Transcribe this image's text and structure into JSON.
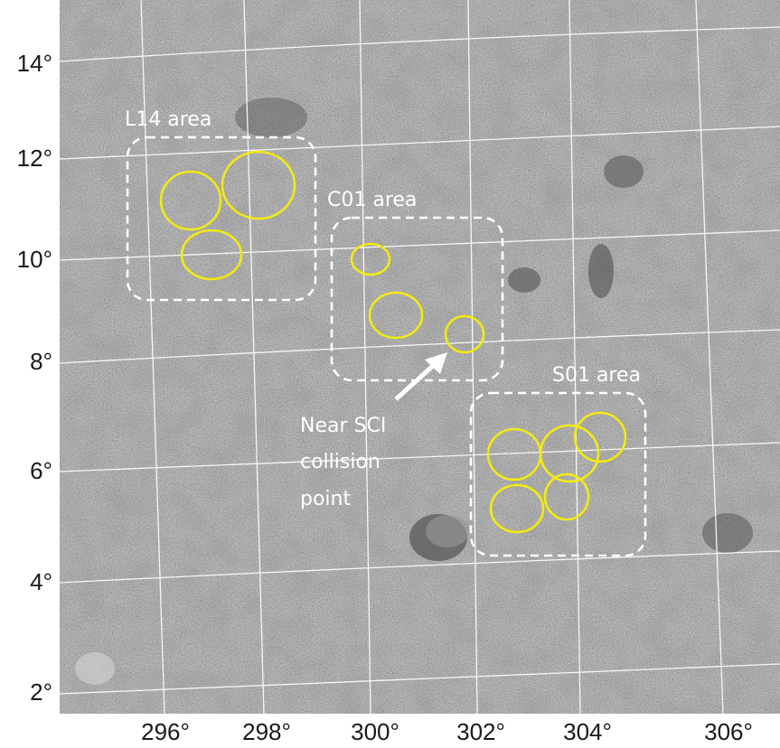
{
  "axes": {
    "x_ticks": [
      "296°",
      "298°",
      "300°",
      "302°",
      "304°",
      "306°"
    ],
    "y_ticks": [
      "14°",
      "12°",
      "10°",
      "8°",
      "6°",
      "4°",
      "2°"
    ]
  },
  "areas": [
    {
      "label": "L14 area"
    },
    {
      "label": "C01 area"
    },
    {
      "label": "S01 area"
    }
  ],
  "annotation": {
    "lines": [
      "Near SCI",
      "collision",
      "point"
    ]
  },
  "colors": {
    "circle": "#f2ea12",
    "grid": "#ffffff",
    "box": "#ffffff",
    "surface": "#7d7d7d"
  }
}
